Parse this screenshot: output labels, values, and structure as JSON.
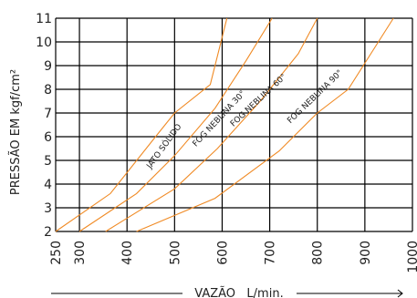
{
  "chart_data": {
    "type": "line",
    "xlabel": "VAZÃO   L/min.",
    "ylabel": "PRESSÃO EM kgf/cm²",
    "xlim": [
      250,
      1000
    ],
    "ylim": [
      2,
      11
    ],
    "x_ticks": [
      250,
      300,
      400,
      500,
      600,
      700,
      800,
      900,
      1000
    ],
    "x_tick_labels": [
      "250",
      "300",
      "400",
      "500",
      "600",
      "700",
      "800",
      "900",
      "1000"
    ],
    "y_ticks": [
      2,
      3,
      4,
      5,
      6,
      7,
      8,
      9,
      10,
      11
    ],
    "y_tick_labels": [
      "2",
      "3",
      "4",
      "5",
      "6",
      "7",
      "8",
      "9",
      "10",
      "11"
    ],
    "grid": true,
    "line_color": "#f08a24",
    "series": [
      {
        "name": "JATO SÓLIDO",
        "points": [
          [
            250,
            2
          ],
          [
            365,
            3.6
          ],
          [
            460,
            6
          ],
          [
            500,
            7
          ],
          [
            575,
            8.2
          ],
          [
            610,
            11
          ]
        ]
      },
      {
        "name": "FOG NEBLINA 30°",
        "points": [
          [
            300,
            2
          ],
          [
            420,
            3.6
          ],
          [
            500,
            5.2
          ],
          [
            585,
            7.2
          ],
          [
            650,
            9.2
          ],
          [
            705,
            11
          ]
        ]
      },
      {
        "name": "FOG NEBLINA 60°",
        "points": [
          [
            355,
            2
          ],
          [
            500,
            3.8
          ],
          [
            590,
            5.5
          ],
          [
            680,
            7.5
          ],
          [
            760,
            9.5
          ],
          [
            800,
            11
          ]
        ]
      },
      {
        "name": "FOG NEBLINA 90°",
        "points": [
          [
            420,
            2
          ],
          [
            585,
            3.4
          ],
          [
            720,
            5.4
          ],
          [
            800,
            7
          ],
          [
            865,
            8
          ],
          [
            960,
            11
          ]
        ]
      }
    ]
  }
}
